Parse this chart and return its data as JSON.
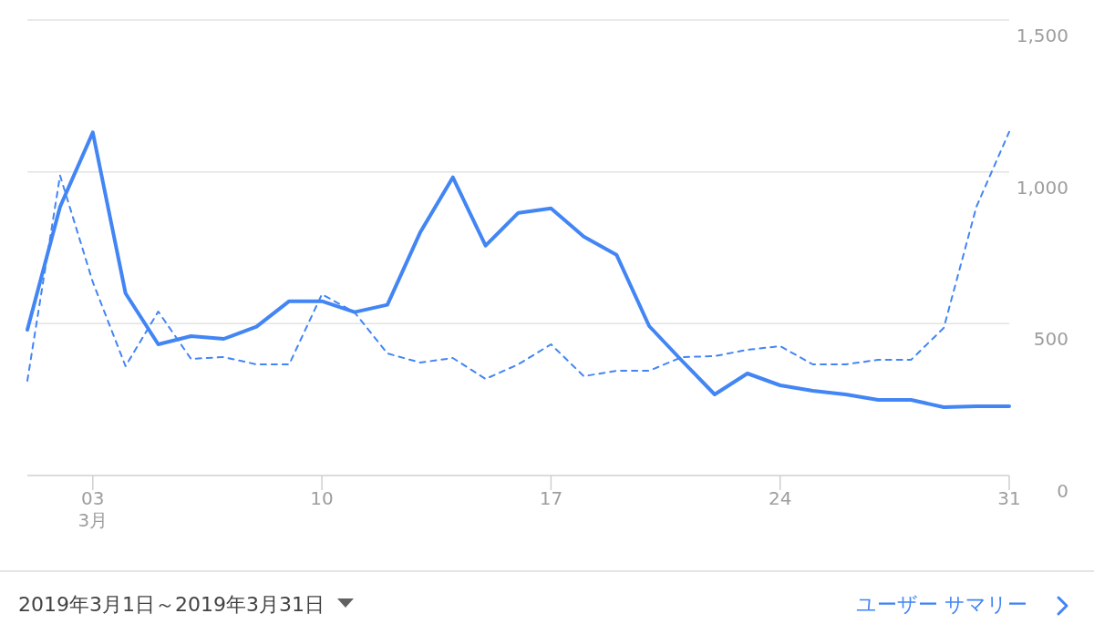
{
  "chart_data": {
    "type": "line",
    "x": [
      "2019-03-01",
      "2019-03-02",
      "2019-03-03",
      "2019-03-04",
      "2019-03-05",
      "2019-03-06",
      "2019-03-07",
      "2019-03-08",
      "2019-03-09",
      "2019-03-10",
      "2019-03-11",
      "2019-03-12",
      "2019-03-13",
      "2019-03-14",
      "2019-03-15",
      "2019-03-16",
      "2019-03-17",
      "2019-03-18",
      "2019-03-19",
      "2019-03-20",
      "2019-03-21",
      "2019-03-22",
      "2019-03-23",
      "2019-03-24",
      "2019-03-25",
      "2019-03-26",
      "2019-03-27",
      "2019-03-28",
      "2019-03-29",
      "2019-03-30",
      "2019-03-31"
    ],
    "series": [
      {
        "color": "#4285f4",
        "line_style": "solid",
        "values": [
          480,
          885,
          1130,
          600,
          432,
          459,
          450,
          490,
          574,
          574,
          538,
          562,
          800,
          982,
          757,
          865,
          880,
          787,
          727,
          492,
          378,
          267,
          336,
          297,
          279,
          267,
          249,
          249,
          225,
          228,
          228
        ]
      },
      {
        "color": "#4285f4",
        "line_style": "dashed",
        "values": [
          312,
          988,
          637,
          360,
          540,
          384,
          390,
          366,
          366,
          597,
          537,
          402,
          372,
          387,
          318,
          366,
          432,
          327,
          345,
          345,
          390,
          393,
          414,
          426,
          366,
          366,
          381,
          381,
          486,
          886,
          1132
        ]
      }
    ],
    "xlim": [
      "2019-03-01",
      "2019-03-31"
    ],
    "xticks": [
      {
        "value": "2019-03-03",
        "label": "03\n3月"
      },
      {
        "value": "2019-03-10",
        "label": "10"
      },
      {
        "value": "2019-03-17",
        "label": "17"
      },
      {
        "value": "2019-03-24",
        "label": "24"
      },
      {
        "value": "2019-03-31",
        "label": "31"
      }
    ],
    "ylim": [
      0,
      1500
    ],
    "yticks": [
      {
        "value": 0,
        "label": "0"
      },
      {
        "value": 500,
        "label": "500"
      },
      {
        "value": 1000,
        "label": "1,000"
      },
      {
        "value": 1500,
        "label": "1,500"
      }
    ],
    "grid": "y",
    "annotations": [
      "2019年3月1日～2019年3月31日",
      "ユーザー サマリー"
    ]
  }
}
